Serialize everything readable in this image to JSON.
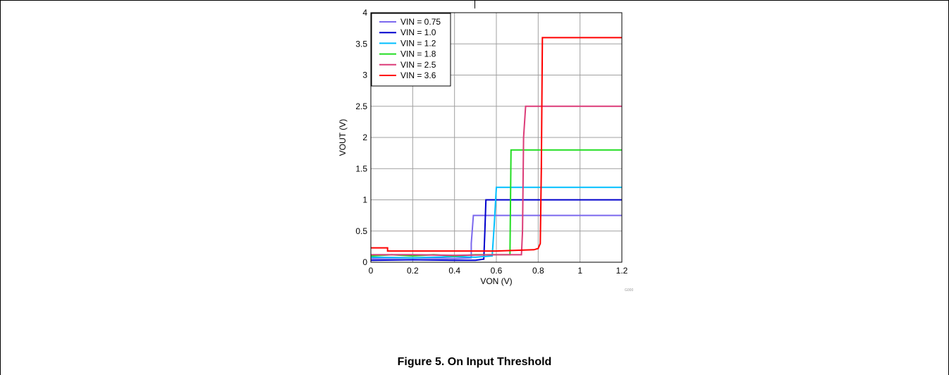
{
  "figure": {
    "caption": "Figure 5. On Input Threshold",
    "code": "G000"
  },
  "chart_data": {
    "type": "line",
    "title": "",
    "xlabel": "VON (V)",
    "ylabel": "VOUT (V)",
    "xlim": [
      0,
      1.2
    ],
    "ylim": [
      0,
      4
    ],
    "x_ticks": [
      "0",
      "0.2",
      "0.4",
      "0.6",
      "0.8",
      "1",
      "1.2"
    ],
    "y_ticks": [
      "0",
      "0.5",
      "1",
      "1.5",
      "2",
      "2.5",
      "3",
      "3.5",
      "4"
    ],
    "x_tick_values": [
      0,
      0.2,
      0.4,
      0.6,
      0.8,
      1.0,
      1.2
    ],
    "y_tick_values": [
      0,
      0.5,
      1.0,
      1.5,
      2.0,
      2.5,
      3.0,
      3.5,
      4.0
    ],
    "grid": true,
    "legend": "top-left",
    "series": [
      {
        "name": "VIN = 0.75",
        "color": "#7b68ee",
        "x": [
          0,
          0.2,
          0.4,
          0.48,
          0.48,
          0.49,
          1.2
        ],
        "y": [
          0.06,
          0.07,
          0.06,
          0.07,
          0.3,
          0.75,
          0.75
        ]
      },
      {
        "name": "VIN = 1.0",
        "color": "#0000cd",
        "x": [
          0,
          0.2,
          0.4,
          0.5,
          0.54,
          0.545,
          0.55,
          1.2
        ],
        "y": [
          0.03,
          0.04,
          0.03,
          0.03,
          0.05,
          0.5,
          1.0,
          1.0
        ]
      },
      {
        "name": "VIN = 1.2",
        "color": "#00bfff",
        "x": [
          0,
          0.2,
          0.4,
          0.5,
          0.58,
          0.59,
          0.6,
          1.2
        ],
        "y": [
          0.08,
          0.07,
          0.09,
          0.08,
          0.1,
          0.6,
          1.2,
          1.2
        ]
      },
      {
        "name": "VIN = 1.8",
        "color": "#22dd22",
        "x": [
          0,
          0.1,
          0.2,
          0.3,
          0.4,
          0.5,
          0.6,
          0.665,
          0.67,
          1.2
        ],
        "y": [
          0.1,
          0.12,
          0.1,
          0.12,
          0.1,
          0.12,
          0.12,
          0.12,
          1.8,
          1.8
        ]
      },
      {
        "name": "VIN = 2.5",
        "color": "#dc3c78",
        "x": [
          0,
          0.2,
          0.4,
          0.6,
          0.7,
          0.72,
          0.725,
          0.73,
          0.74,
          1.2
        ],
        "y": [
          0.12,
          0.12,
          0.11,
          0.12,
          0.12,
          0.12,
          0.5,
          2.0,
          2.5,
          2.5
        ]
      },
      {
        "name": "VIN = 3.6",
        "color": "#ff0000",
        "x": [
          0,
          0.05,
          0.08,
          0.08,
          0.2,
          0.4,
          0.6,
          0.78,
          0.8,
          0.81,
          0.815,
          0.82,
          1.2
        ],
        "y": [
          0.23,
          0.23,
          0.23,
          0.18,
          0.18,
          0.18,
          0.18,
          0.2,
          0.22,
          0.3,
          1.5,
          3.6,
          3.6
        ]
      }
    ]
  }
}
